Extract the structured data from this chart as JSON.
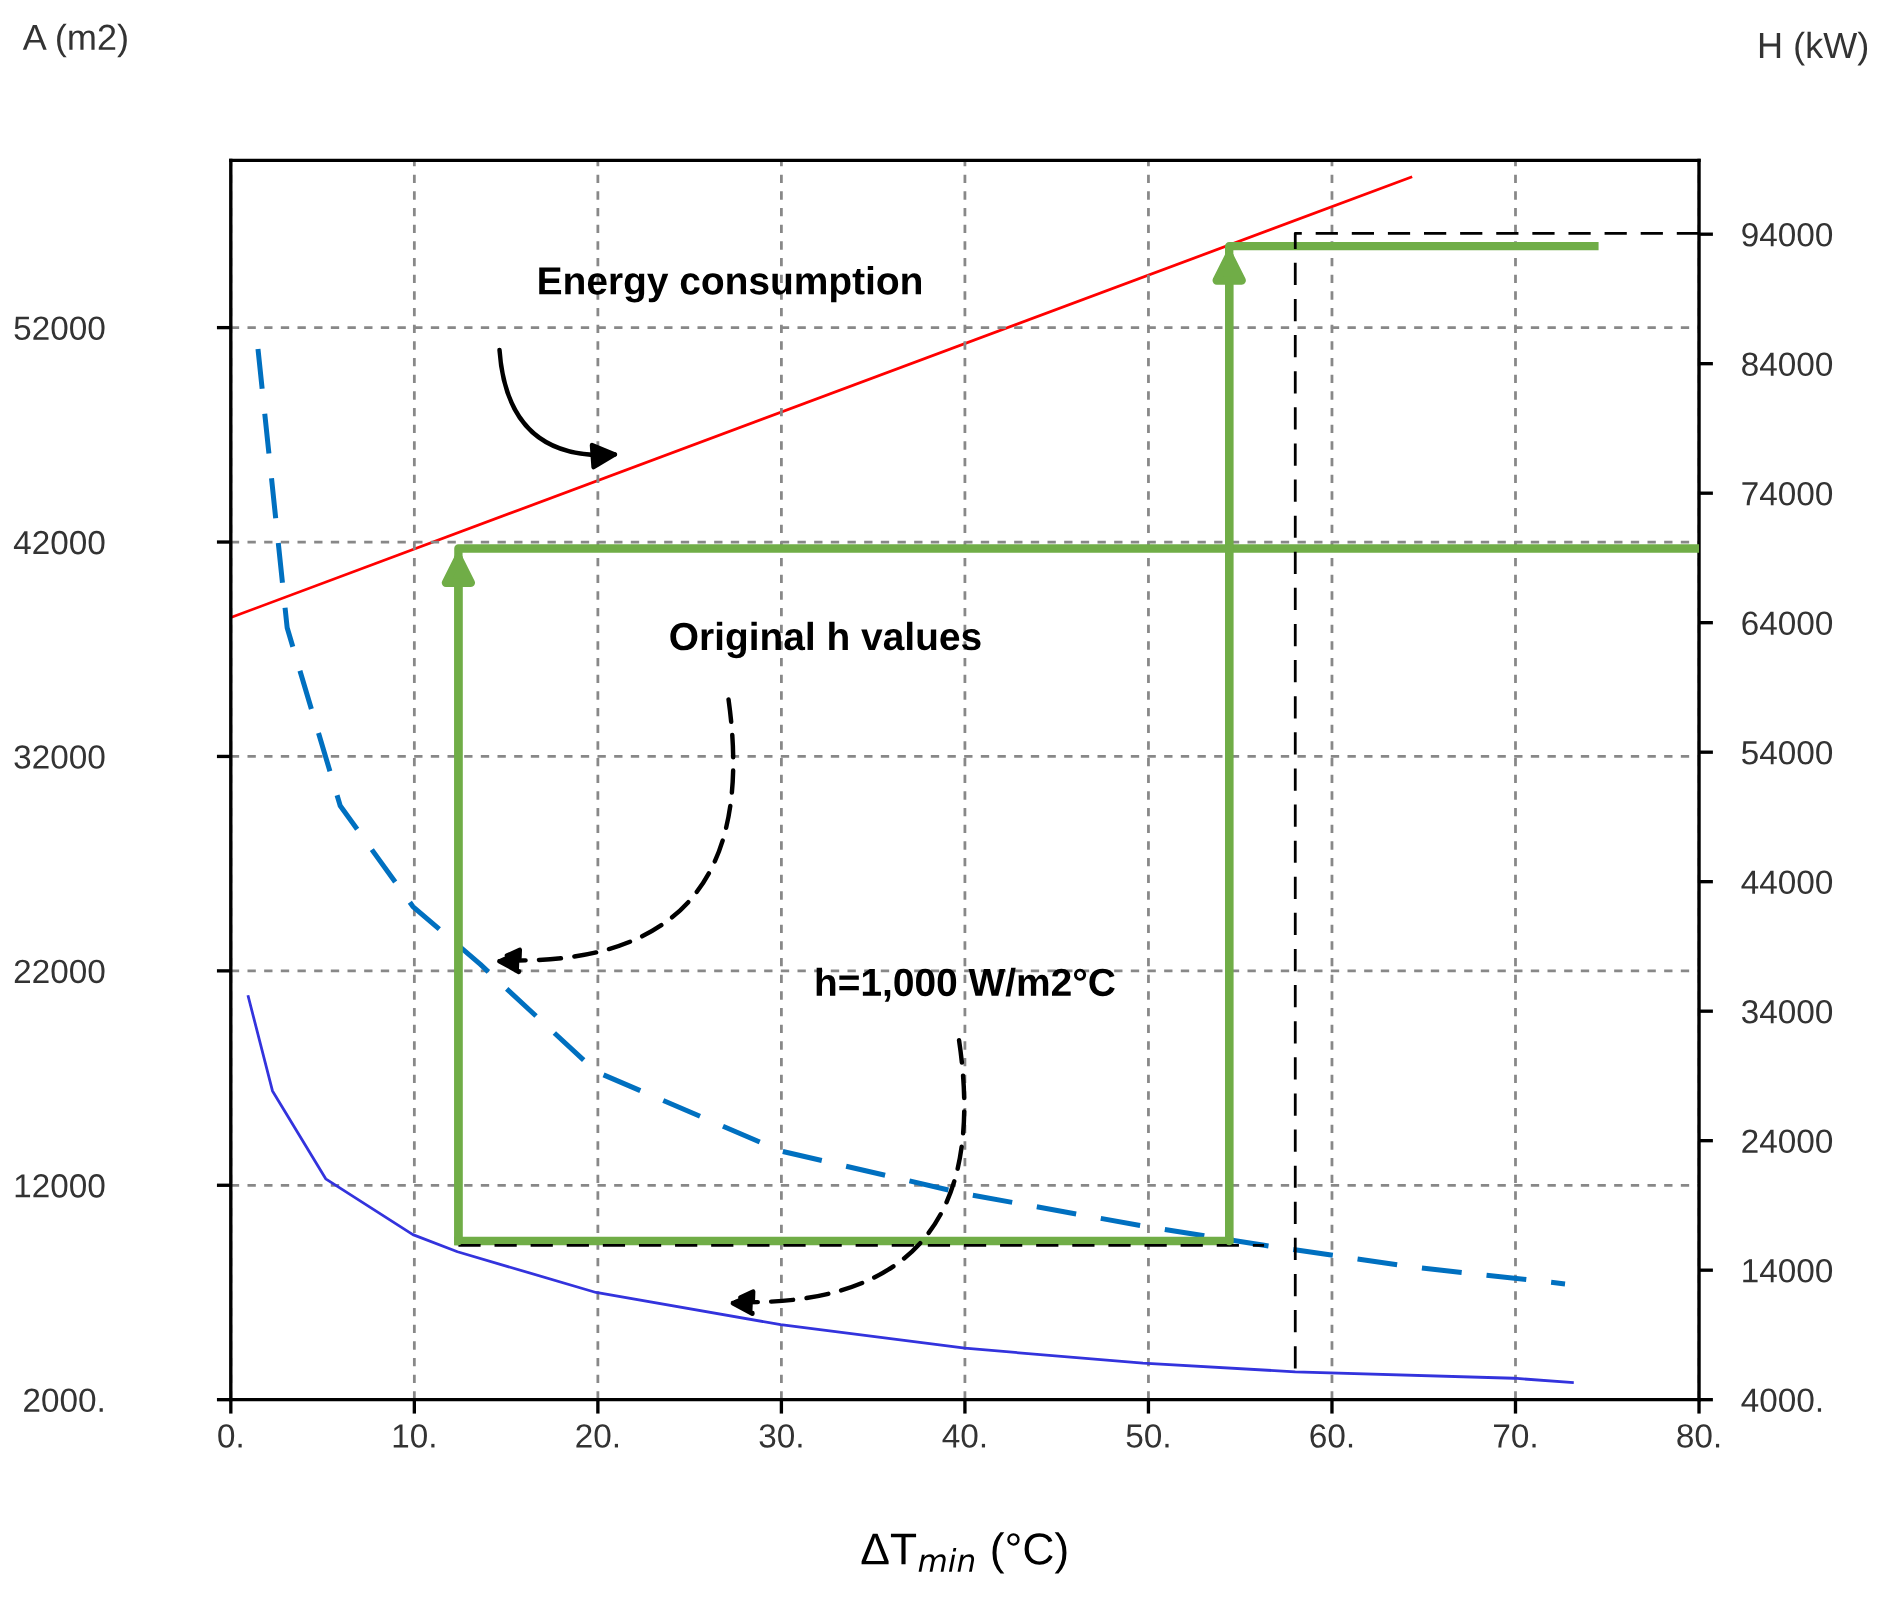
{
  "chart_data": {
    "type": "line",
    "xlabel": "ΔT$_{min}$ (°C)",
    "ylabel": "A (m2)",
    "y2label": "H (kW)",
    "xlim": [
      0,
      80
    ],
    "ylim": [
      2000,
      59800
    ],
    "y2lim": [
      4000,
      99700
    ],
    "xticks": [
      {
        "value": 0,
        "label": "0."
      },
      {
        "value": 10,
        "label": "10."
      },
      {
        "value": 20,
        "label": "20."
      },
      {
        "value": 30,
        "label": "30."
      },
      {
        "value": 40,
        "label": "40."
      },
      {
        "value": 50,
        "label": "50."
      },
      {
        "value": 60,
        "label": "60."
      },
      {
        "value": 70,
        "label": "70."
      },
      {
        "value": 80,
        "label": "80."
      }
    ],
    "yticks": [
      {
        "value": 2000,
        "label": "2000."
      },
      12000,
      22000,
      32000,
      42000,
      52000
    ],
    "y2ticks": [
      {
        "value": 4000,
        "label": "4000."
      },
      14000,
      24000,
      34000,
      44000,
      54000,
      64000,
      74000,
      84000,
      94000
    ],
    "grid": true,
    "series": [
      {
        "axis": "y2",
        "color": "#ff0000",
        "line_style": "solid",
        "x": [
          0,
          64.3
        ],
        "values": [
          64400,
          98400
        ]
      },
      {
        "color": "#0070c0",
        "line_style": "dashed",
        "x": [
          1.48,
          3.07,
          5.96,
          9.92,
          13.6,
          19.9,
          29.96,
          40.0,
          49.7,
          56.3,
          64.3,
          72.7
        ],
        "values": [
          51000,
          38000,
          29700,
          25000,
          22300,
          17300,
          13600,
          11600,
          10100,
          9200,
          8200,
          7400
        ]
      },
      {
        "color": "#3333dd",
        "line_style": "solid",
        "x": [
          0.95,
          2.27,
          5.17,
          9.92,
          12.35,
          19.9,
          29.96,
          40,
          49.7,
          58,
          69.9,
          73.1
        ],
        "values": [
          20800,
          16400,
          12300,
          9700,
          8900,
          7000,
          5500,
          4400,
          3700,
          3300,
          3000,
          2800
        ]
      },
      {
        "color": "#70ad47",
        "line_style": "solid",
        "x": [
          12.4,
          12.4,
          80
        ],
        "values": [
          9400,
          41700,
          41700
        ]
      },
      {
        "color": "#70ad47",
        "line_style": "solid",
        "x": [
          12.4,
          54.4
        ],
        "values": [
          9400,
          9400
        ]
      },
      {
        "color": "#70ad47",
        "line_style": "solid",
        "x": [
          54.4,
          54.4,
          74.3
        ],
        "values": [
          9400,
          55800,
          55800
        ]
      },
      {
        "color": "#000000",
        "line_style": "dashed",
        "x": [
          12.4,
          56.3
        ],
        "values": [
          9200,
          9200
        ]
      },
      {
        "color": "#000000",
        "line_style": "dashed",
        "x": [
          80,
          58,
          58
        ],
        "values": [
          56400,
          56400,
          3300
        ]
      }
    ],
    "annotations": [
      "Energy consumption",
      "Original h values",
      "h=1,000 W/m2°C"
    ]
  }
}
